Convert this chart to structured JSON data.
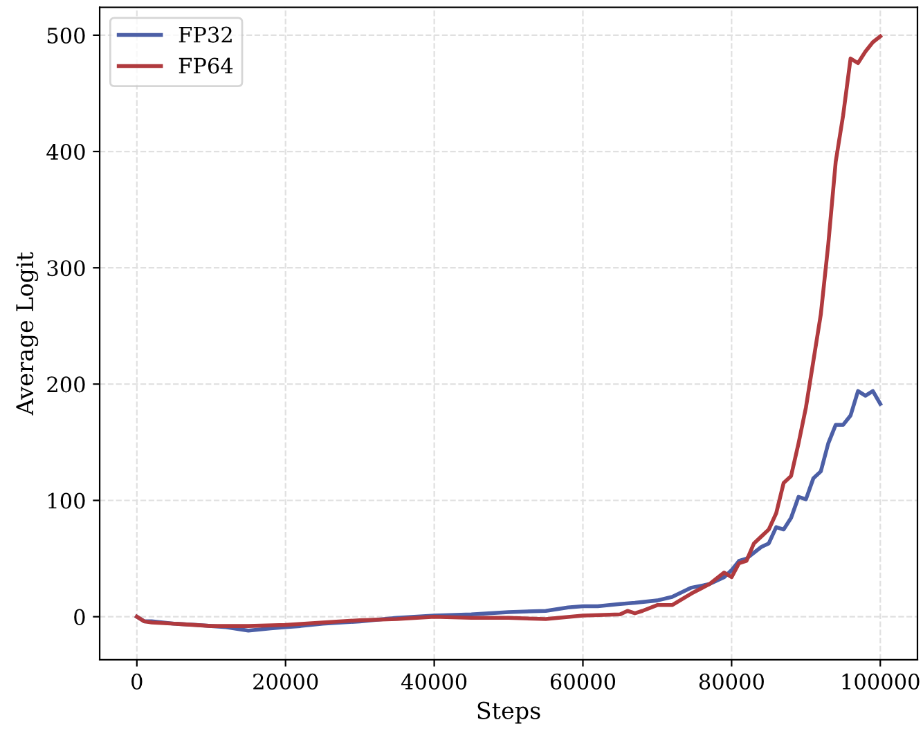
{
  "chart_data": {
    "type": "line",
    "xlabel": "Steps",
    "ylabel": "Average Logit",
    "xlim": [
      -5000,
      105000
    ],
    "ylim": [
      -37,
      524
    ],
    "xticks": [
      0,
      20000,
      40000,
      60000,
      80000,
      100000
    ],
    "yticks": [
      0,
      100,
      200,
      300,
      400,
      500
    ],
    "grid": true,
    "legend": "top left",
    "line_style": "solid",
    "marker": "none",
    "series": [
      {
        "name": "FP32",
        "color": "#4c5fa6",
        "x": [
          0,
          1000,
          2000,
          5000,
          8000,
          10000,
          12000,
          15000,
          18000,
          20000,
          22000,
          25000,
          30000,
          35000,
          40000,
          45000,
          50000,
          55000,
          58000,
          60000,
          62000,
          65000,
          67000,
          70000,
          72000,
          74600,
          77000,
          79000,
          80000,
          81000,
          82000,
          84000,
          85000,
          86000,
          87000,
          88000,
          89000,
          90000,
          91000,
          92000,
          93000,
          94000,
          95000,
          96000,
          97000,
          98000,
          99000,
          100000
        ],
        "values": [
          0,
          -4,
          -4,
          -6,
          -7,
          -8,
          -9,
          -12,
          -10,
          -9,
          -8,
          -6,
          -4,
          -1,
          1,
          2,
          4,
          5,
          8,
          9,
          9,
          11,
          12,
          14,
          17,
          25,
          28,
          34,
          40,
          48,
          50,
          60,
          63,
          77,
          75,
          85,
          103,
          101,
          119,
          125,
          149,
          165,
          165,
          173,
          194,
          190,
          194,
          183
        ]
      },
      {
        "name": "FP64",
        "color": "#b03a3e",
        "x": [
          0,
          1000,
          2000,
          5000,
          10000,
          15000,
          20000,
          25000,
          30000,
          35000,
          40000,
          45000,
          50000,
          55000,
          60000,
          65000,
          66000,
          67000,
          68000,
          70000,
          72000,
          74600,
          77000,
          79000,
          80000,
          81000,
          82000,
          83000,
          84000,
          85000,
          86000,
          87000,
          88000,
          89000,
          90000,
          91000,
          92000,
          93000,
          94000,
          95000,
          96000,
          97000,
          98000,
          99000,
          100000
        ],
        "values": [
          0,
          -4,
          -5,
          -6,
          -8,
          -8,
          -7,
          -5,
          -3,
          -2,
          0,
          -1,
          -1,
          -2,
          1,
          2,
          5,
          3,
          5,
          10,
          10,
          20,
          28,
          38,
          34,
          46,
          48,
          63,
          69,
          75,
          89,
          115,
          121,
          149,
          180,
          220,
          260,
          320,
          391,
          431,
          480,
          476,
          486,
          494,
          499
        ]
      }
    ]
  }
}
